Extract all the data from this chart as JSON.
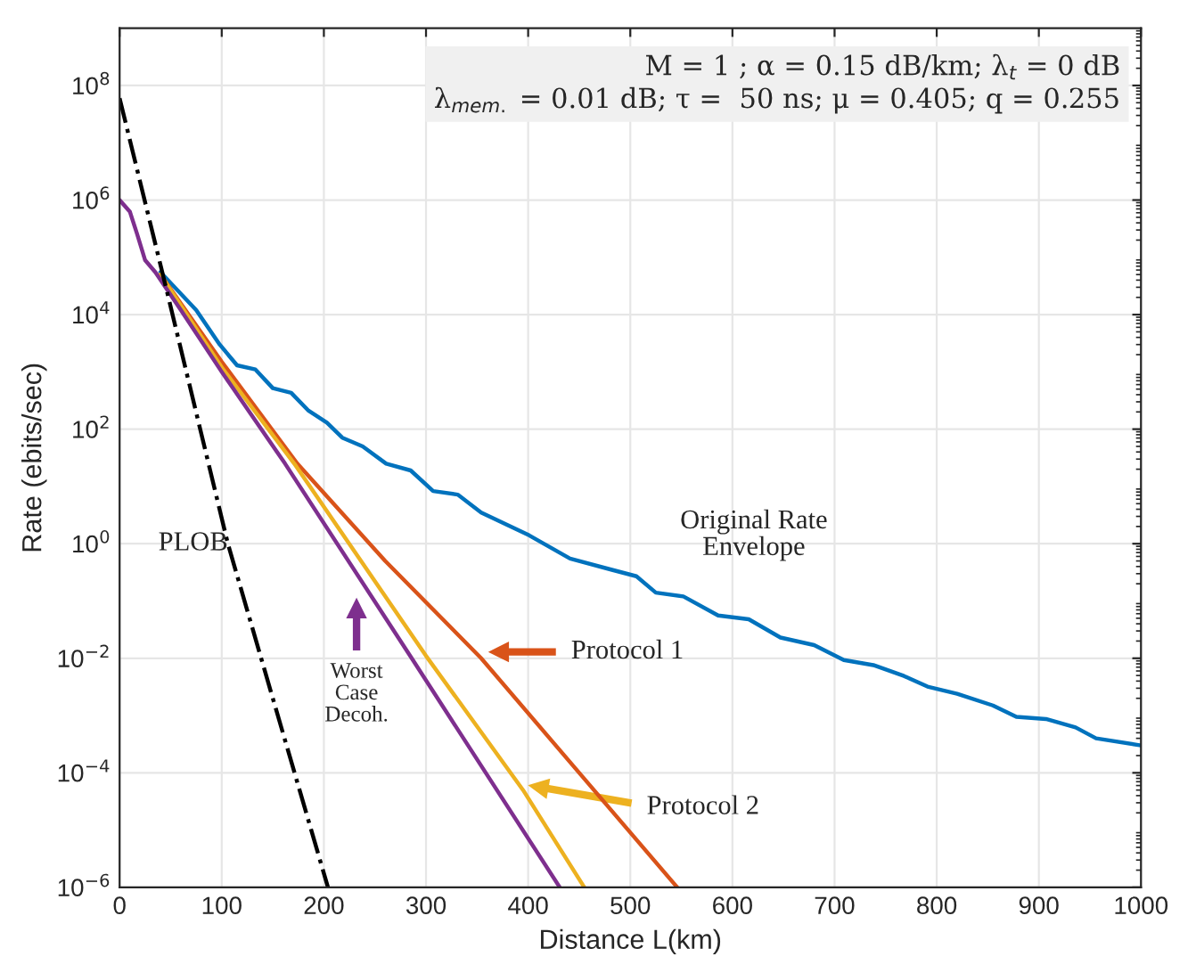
{
  "chart_data": {
    "type": "line",
    "xlabel": "Distance L(km)",
    "ylabel": "Rate (ebits/sec)",
    "xlim": [
      0,
      1000
    ],
    "xticks": [
      0,
      100,
      200,
      300,
      400,
      500,
      600,
      700,
      800,
      900,
      1000
    ],
    "ylim": [
      1e-06,
      1000000000.0
    ],
    "log": "y",
    "yticks": [
      {
        "value": 1e-06,
        "label": "10$^{−6}$"
      },
      {
        "value": 0.0001,
        "label": "10$^{−4}$"
      },
      {
        "value": 0.01,
        "label": "10$^{−2}$"
      },
      {
        "value": 1,
        "label": "10$^{0}$"
      },
      {
        "value": 100,
        "label": "10$^{2}$"
      },
      {
        "value": 10000,
        "label": "10$^{4}$"
      },
      {
        "value": 1000000,
        "label": "10$^{6}$"
      },
      {
        "value": 100000000,
        "label": "10$^{8}$"
      }
    ],
    "grid": true,
    "series": [
      {
        "color": "#0072bd",
        "x": [
          40,
          75,
          98,
          115,
          133,
          150,
          168,
          185,
          203,
          218,
          238,
          261,
          285,
          307,
          331,
          354,
          401,
          441,
          482,
          506,
          525,
          552,
          586,
          616,
          647,
          680,
          709,
          738,
          768,
          791,
          820,
          855,
          878,
          907,
          936,
          956,
          1000
        ],
        "values": [
          55000,
          12000,
          3000,
          1300,
          1100,
          520,
          430,
          210,
          130,
          71,
          50,
          25,
          19,
          8.3,
          7.2,
          3.5,
          1.4,
          0.55,
          0.35,
          0.27,
          0.14,
          0.12,
          0.056,
          0.048,
          0.023,
          0.017,
          0.0093,
          0.0076,
          0.0049,
          0.0032,
          0.0024,
          0.0015,
          0.00095,
          0.00087,
          0.00062,
          0.0004,
          0.0003
        ]
      },
      {
        "color": "#d95319",
        "x": [
          40,
          100,
          174,
          260,
          354,
          450,
          546
        ],
        "values": [
          50000,
          1500,
          25,
          0.5,
          0.01,
          0.0001,
          1e-06
        ]
      },
      {
        "color": "#edb120",
        "x": [
          40,
          100,
          171,
          300,
          395,
          455
        ],
        "values": [
          50000,
          1200,
          25,
          0.011,
          5e-05,
          1e-06
        ]
      },
      {
        "color": "#7e2f8e",
        "x": [
          0,
          10,
          17,
          25,
          35,
          60,
          100,
          162,
          286,
          431
        ],
        "values": [
          1000000,
          630000,
          260000,
          89000,
          55000,
          12000,
          1000,
          25,
          0.01,
          1e-06
        ]
      },
      {
        "color": "#000000",
        "line_style": "dashdot",
        "x": [
          0,
          45,
          106,
          150,
          204
        ],
        "values": [
          60000000,
          32000,
          1,
          0.002,
          1e-06
        ]
      }
    ],
    "annotations": [
      "M = 1 ; α = 0.15 dB/km; λ$_{t}$ = 0 dB\nλ$_{mem.}$ = 0.01 dB; τ =  50 ns; μ = 0.405; q = 0.255",
      "PLOB",
      "Original Rate\nEnvelope",
      "Protocol 1",
      "Protocol 2",
      "Worst\nCase\nDecoh."
    ]
  }
}
